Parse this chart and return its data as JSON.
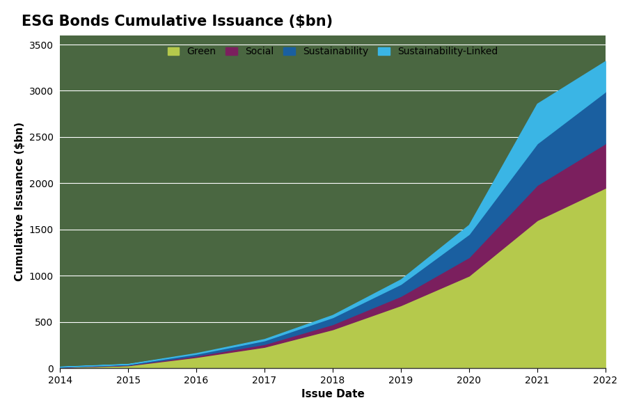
{
  "title": "ESG Bonds Cumulative Issuance ($bn)",
  "xlabel": "Issue Date",
  "ylabel": "Cumulative Issuance ($bn)",
  "years": [
    2014,
    2015,
    2016,
    2017,
    2018,
    2019,
    2020,
    2021,
    2022
  ],
  "green": [
    10,
    30,
    120,
    230,
    420,
    680,
    1000,
    1600,
    1950
  ],
  "social": [
    2,
    5,
    15,
    30,
    55,
    100,
    200,
    380,
    480
  ],
  "sustainability": [
    3,
    8,
    20,
    40,
    75,
    130,
    250,
    450,
    560
  ],
  "sustainability_linked": [
    1,
    3,
    8,
    15,
    25,
    50,
    100,
    430,
    330
  ],
  "colors": {
    "green": "#b5c94c",
    "social": "#7b1f5e",
    "sustainability": "#1a5fa0",
    "sustainability_linked": "#3ab5e5"
  },
  "plot_bg_color": "#4a6741",
  "figure_bg_color": "#ffffff",
  "legend_labels": [
    "Green",
    "Social",
    "Sustainability",
    "Sustainability-Linked"
  ],
  "ylim": [
    0,
    3600
  ],
  "yticks": [
    0,
    500,
    1000,
    1500,
    2000,
    2500,
    3000,
    3500
  ],
  "xlim": [
    2014,
    2022
  ],
  "title_fontsize": 15,
  "axis_label_fontsize": 11,
  "tick_fontsize": 10,
  "grid_color": "#ffffff",
  "grid_linewidth": 0.8
}
